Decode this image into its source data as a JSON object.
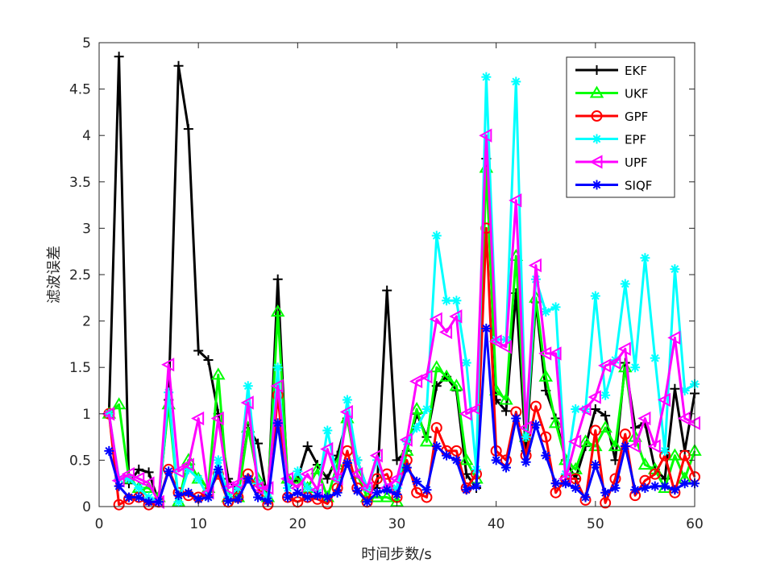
{
  "chart_data": {
    "type": "line",
    "title": "",
    "xlabel": "时间步数/s",
    "ylabel": "滤波误差",
    "xlim": [
      0,
      60
    ],
    "ylim": [
      0,
      5
    ],
    "xticks": [
      0,
      10,
      20,
      30,
      40,
      50,
      60
    ],
    "yticks": [
      0,
      0.5,
      1,
      1.5,
      2,
      2.5,
      3,
      3.5,
      4,
      4.5,
      5
    ],
    "ytick_labels": [
      "0",
      "0.5",
      "1",
      "1.5",
      "2",
      "2.5",
      "3",
      "3.5",
      "4",
      "4.5",
      "5"
    ],
    "grid": false,
    "legend_position": "top-right",
    "x": [
      1,
      2,
      3,
      4,
      5,
      6,
      7,
      8,
      9,
      10,
      11,
      12,
      13,
      14,
      15,
      16,
      17,
      18,
      19,
      20,
      21,
      22,
      23,
      24,
      25,
      26,
      27,
      28,
      29,
      30,
      31,
      32,
      33,
      34,
      35,
      36,
      37,
      38,
      39,
      40,
      41,
      42,
      43,
      44,
      45,
      46,
      47,
      48,
      49,
      50,
      51,
      52,
      53,
      54,
      55,
      56,
      57,
      58,
      59,
      60
    ],
    "series": [
      {
        "name": "EKF",
        "color": "#000000",
        "marker": "plus",
        "values": [
          1.0,
          4.85,
          0.25,
          0.4,
          0.37,
          0.05,
          1.15,
          4.75,
          4.07,
          1.68,
          1.58,
          1.0,
          0.3,
          0.15,
          0.85,
          0.68,
          0.05,
          2.45,
          0.2,
          0.3,
          0.65,
          0.45,
          0.3,
          0.55,
          0.95,
          0.5,
          0.2,
          0.2,
          2.33,
          0.5,
          0.6,
          1.0,
          0.75,
          1.3,
          1.4,
          1.25,
          0.35,
          0.2,
          3.75,
          1.15,
          1.03,
          2.3,
          0.6,
          2.2,
          1.25,
          0.95,
          0.5,
          0.3,
          0.65,
          1.05,
          0.98,
          0.5,
          1.55,
          0.85,
          0.9,
          0.4,
          0.3,
          1.27,
          0.6,
          1.22
        ]
      },
      {
        "name": "UKF",
        "color": "#00ff00",
        "marker": "triangle-up",
        "values": [
          1.0,
          1.1,
          0.3,
          0.2,
          0.2,
          0.1,
          1.1,
          0.05,
          0.5,
          0.3,
          0.2,
          1.42,
          0.1,
          0.1,
          0.85,
          0.3,
          0.1,
          2.1,
          0.3,
          0.3,
          0.2,
          0.4,
          0.1,
          0.45,
          0.95,
          0.35,
          0.1,
          0.1,
          0.1,
          0.05,
          0.6,
          1.05,
          0.7,
          1.5,
          1.4,
          1.3,
          0.5,
          0.3,
          3.65,
          1.25,
          1.15,
          2.7,
          0.75,
          2.25,
          1.4,
          0.9,
          0.5,
          0.4,
          0.7,
          0.65,
          0.85,
          0.65,
          1.5,
          0.75,
          0.45,
          0.4,
          0.2,
          0.55,
          0.3,
          0.6
        ]
      },
      {
        "name": "GPF",
        "color": "#ff0000",
        "marker": "circle",
        "values": [
          1.0,
          0.02,
          0.08,
          0.1,
          0.02,
          0.05,
          0.4,
          0.15,
          0.12,
          0.1,
          0.15,
          0.35,
          0.05,
          0.1,
          0.35,
          0.2,
          0.02,
          1.2,
          0.1,
          0.05,
          0.1,
          0.08,
          0.03,
          0.2,
          0.6,
          0.2,
          0.05,
          0.3,
          0.35,
          0.1,
          0.5,
          0.15,
          0.1,
          0.85,
          0.6,
          0.6,
          0.2,
          0.35,
          3.0,
          0.6,
          0.5,
          1.02,
          0.55,
          1.08,
          0.75,
          0.15,
          0.3,
          0.3,
          0.07,
          0.82,
          0.04,
          0.3,
          0.78,
          0.12,
          0.28,
          0.35,
          0.55,
          0.15,
          0.55,
          0.32
        ]
      },
      {
        "name": "EPF",
        "color": "#00ffff",
        "marker": "asterisk",
        "values": [
          1.0,
          0.3,
          0.3,
          0.2,
          0.1,
          0.05,
          1.23,
          0.05,
          0.4,
          0.3,
          0.1,
          0.5,
          0.1,
          0.2,
          1.3,
          0.25,
          0.1,
          1.5,
          0.2,
          0.38,
          0.2,
          0.15,
          0.82,
          0.3,
          1.15,
          0.5,
          0.2,
          0.5,
          0.2,
          0.2,
          0.7,
          0.85,
          1.05,
          2.92,
          2.22,
          2.22,
          1.55,
          0.4,
          4.63,
          1.8,
          1.8,
          4.58,
          0.75,
          2.45,
          2.1,
          2.15,
          0.35,
          1.05,
          1.05,
          2.27,
          1.2,
          1.58,
          2.4,
          1.5,
          2.68,
          1.6,
          0.6,
          2.56,
          1.25,
          1.32
        ]
      },
      {
        "name": "UPF",
        "color": "#ff00ff",
        "marker": "triangle-left",
        "values": [
          1.0,
          0.28,
          0.35,
          0.3,
          0.25,
          0.05,
          1.53,
          0.38,
          0.45,
          0.95,
          0.15,
          0.95,
          0.2,
          0.25,
          1.12,
          0.2,
          0.2,
          1.3,
          0.3,
          0.2,
          0.35,
          0.18,
          0.62,
          0.3,
          1.02,
          0.35,
          0.2,
          0.55,
          0.2,
          0.3,
          0.72,
          1.35,
          1.4,
          2.02,
          1.88,
          2.05,
          1.0,
          1.05,
          4.0,
          1.78,
          1.72,
          3.3,
          0.85,
          2.6,
          1.65,
          1.65,
          0.3,
          0.7,
          1.05,
          1.18,
          1.52,
          1.55,
          1.7,
          0.65,
          0.95,
          0.65,
          1.15,
          1.82,
          0.95,
          0.9
        ]
      },
      {
        "name": "SIQF",
        "color": "#0000ff",
        "marker": "asterisk",
        "values": [
          0.6,
          0.22,
          0.1,
          0.1,
          0.05,
          0.05,
          0.38,
          0.12,
          0.15,
          0.08,
          0.1,
          0.4,
          0.06,
          0.08,
          0.3,
          0.1,
          0.06,
          0.9,
          0.1,
          0.15,
          0.1,
          0.12,
          0.1,
          0.15,
          0.47,
          0.17,
          0.05,
          0.15,
          0.18,
          0.13,
          0.42,
          0.27,
          0.18,
          0.65,
          0.55,
          0.5,
          0.18,
          0.22,
          1.92,
          0.5,
          0.42,
          0.95,
          0.48,
          0.88,
          0.55,
          0.25,
          0.25,
          0.2,
          0.1,
          0.45,
          0.15,
          0.2,
          0.65,
          0.18,
          0.2,
          0.22,
          0.22,
          0.18,
          0.25,
          0.25
        ]
      }
    ]
  }
}
